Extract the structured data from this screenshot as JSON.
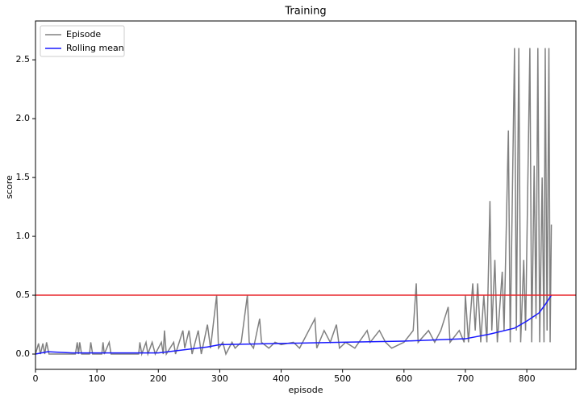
{
  "chart_data": {
    "type": "line",
    "title": "Training",
    "xlabel": "episode",
    "ylabel": "score",
    "xlim": [
      0,
      880
    ],
    "ylim": [
      -0.13,
      2.83
    ],
    "xticks": [
      0,
      100,
      200,
      300,
      400,
      500,
      600,
      700,
      800
    ],
    "yticks": [
      {
        "value": 0,
        "label": "0.0"
      },
      0.5,
      {
        "value": 1,
        "label": "1.0"
      },
      1.5,
      {
        "value": 2,
        "label": "2.0"
      },
      2.5
    ],
    "legend": "upper left",
    "threshold": {
      "value": 0.5,
      "color": "#e8272b"
    },
    "series": [
      {
        "name": "Episode",
        "color": "#808080",
        "x": [
          0,
          5,
          8,
          12,
          15,
          18,
          22,
          65,
          68,
          70,
          72,
          75,
          88,
          90,
          93,
          108,
          110,
          112,
          120,
          123,
          168,
          170,
          173,
          180,
          183,
          190,
          195,
          205,
          208,
          210,
          213,
          225,
          228,
          240,
          243,
          250,
          255,
          260,
          265,
          270,
          280,
          285,
          295,
          298,
          305,
          310,
          320,
          325,
          335,
          345,
          348,
          355,
          365,
          368,
          380,
          390,
          400,
          420,
          430,
          445,
          455,
          458,
          470,
          480,
          490,
          495,
          505,
          520,
          540,
          545,
          560,
          570,
          580,
          600,
          615,
          620,
          623,
          640,
          650,
          660,
          672,
          675,
          690,
          698,
          700,
          705,
          712,
          716,
          720,
          725,
          730,
          735,
          740,
          743,
          748,
          752,
          760,
          763,
          770,
          773,
          780,
          783,
          787,
          790,
          795,
          798,
          805,
          808,
          812,
          815,
          818,
          821,
          825,
          828,
          830,
          833,
          836,
          838,
          840
        ],
        "values": [
          0,
          0.09,
          0,
          0.09,
          0,
          0.1,
          0,
          0,
          0.1,
          0,
          0.1,
          0,
          0,
          0.1,
          0,
          0,
          0.1,
          0,
          0.1,
          0,
          0,
          0.1,
          0,
          0.1,
          0,
          0.1,
          0,
          0.1,
          0,
          0.2,
          0,
          0.1,
          0,
          0.2,
          0.05,
          0.2,
          0,
          0.1,
          0.2,
          0,
          0.25,
          0.05,
          0.5,
          0.05,
          0.1,
          0,
          0.1,
          0.05,
          0.1,
          0.5,
          0.1,
          0.05,
          0.3,
          0.1,
          0.05,
          0.1,
          0.08,
          0.1,
          0.05,
          0.2,
          0.3,
          0.05,
          0.2,
          0.1,
          0.25,
          0.05,
          0.1,
          0.05,
          0.2,
          0.1,
          0.2,
          0.1,
          0.05,
          0.1,
          0.2,
          0.6,
          0.1,
          0.2,
          0.1,
          0.2,
          0.4,
          0.1,
          0.2,
          0.1,
          0.5,
          0.1,
          0.6,
          0.2,
          0.6,
          0.1,
          0.5,
          0.1,
          1.3,
          0.2,
          0.8,
          0.1,
          0.7,
          0.2,
          1.9,
          0.1,
          2.6,
          0.2,
          2.6,
          0.1,
          0.8,
          0.2,
          2.6,
          0.1,
          1.6,
          0.3,
          2.6,
          0.1,
          1.5,
          0.1,
          2.6,
          0.2,
          2.6,
          0.1,
          1.1
        ]
      },
      {
        "name": "Rolling mean",
        "color": "#1a1aff",
        "x": [
          0,
          20,
          60,
          200,
          280,
          300,
          400,
          500,
          600,
          700,
          740,
          780,
          800,
          820,
          830,
          840
        ],
        "values": [
          0,
          0.02,
          0.01,
          0.01,
          0.06,
          0.08,
          0.09,
          0.1,
          0.11,
          0.13,
          0.17,
          0.22,
          0.28,
          0.35,
          0.42,
          0.5
        ]
      }
    ]
  }
}
